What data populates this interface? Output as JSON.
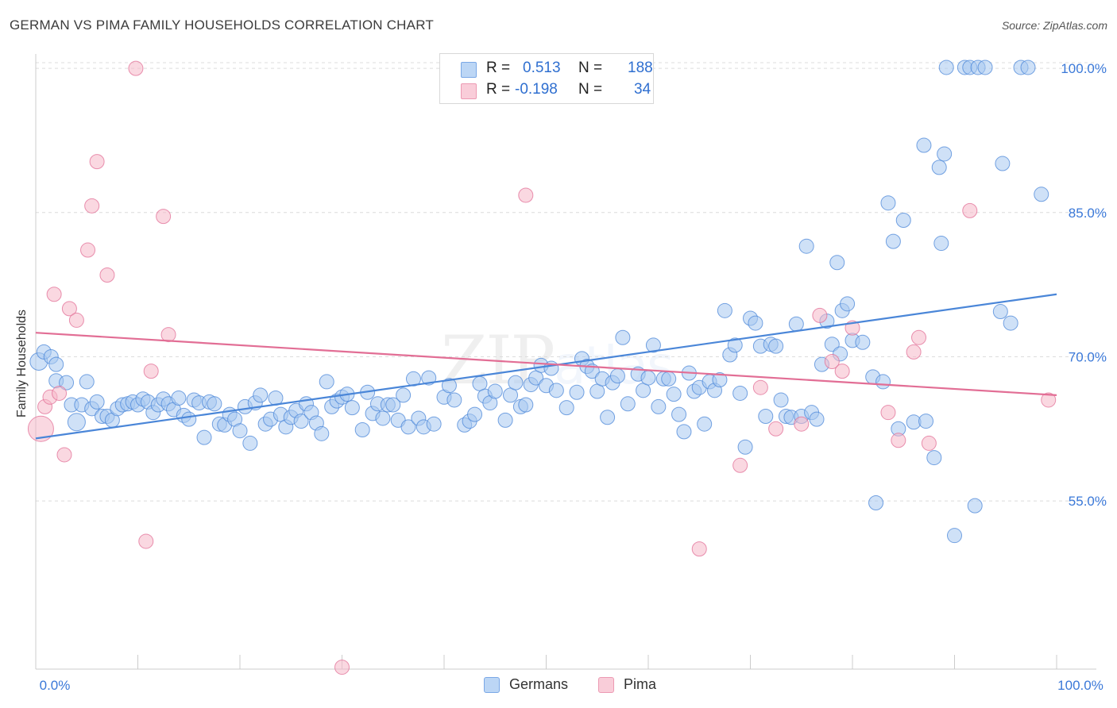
{
  "title": "GERMAN VS PIMA FAMILY HOUSEHOLDS CORRELATION CHART",
  "source": "Source: ZipAtlas.com",
  "watermark": {
    "zip": "ZIP",
    "atlas": "atlas"
  },
  "legend": {
    "rows": [
      {
        "r_label": "R =",
        "r_value": "0.513",
        "n_label": "N =",
        "n_value": "188",
        "color": "#a8c8f0"
      },
      {
        "r_label": "R =",
        "r_value": "-0.198",
        "n_label": "N =",
        "n_value": "34",
        "color": "#f5b8c8"
      }
    ]
  },
  "bottom_legend": [
    {
      "label": "Germans",
      "color": "#a8c8f0"
    },
    {
      "label": "Pima",
      "color": "#f5b8c8"
    }
  ],
  "chart_data": {
    "type": "scatter",
    "title": "GERMAN VS PIMA FAMILY HOUSEHOLDS CORRELATION CHART",
    "xlabel": "",
    "ylabel": "Family Households",
    "xlim": [
      0,
      100
    ],
    "ylim": [
      37.5,
      101.5
    ],
    "x_tick_labels": [
      "0.0%",
      "100.0%"
    ],
    "y_tick_labels": [
      "55.0%",
      "70.0%",
      "85.0%",
      "100.0%"
    ],
    "y_ticks": [
      55,
      70,
      85,
      100
    ],
    "grid": true,
    "legend_position": "top-center",
    "series": [
      {
        "name": "Germans",
        "color": "#4a86d8",
        "fill": "#a8c8f0",
        "trend": {
          "x": [
            0,
            100
          ],
          "y": [
            61.5,
            76.5
          ]
        },
        "points": [
          [
            0.3,
            69.5,
            2
          ],
          [
            0.8,
            70.5,
            1
          ],
          [
            1.5,
            70,
            1
          ],
          [
            2,
            69.2,
            1
          ],
          [
            2,
            67.5,
            1
          ],
          [
            3,
            67.3,
            1
          ],
          [
            3.5,
            65,
            1
          ],
          [
            4,
            63.2,
            2
          ],
          [
            4.5,
            65,
            1
          ],
          [
            5,
            67.4,
            1
          ],
          [
            5.5,
            64.6,
            1
          ],
          [
            6,
            65.3,
            1
          ],
          [
            6.5,
            63.8,
            1
          ],
          [
            7,
            63.8,
            1
          ],
          [
            7.5,
            63.4,
            1
          ],
          [
            8,
            64.6,
            1
          ],
          [
            8.5,
            65,
            1
          ],
          [
            9,
            65.1,
            1
          ],
          [
            9.5,
            65.3,
            1
          ],
          [
            10,
            65,
            1
          ],
          [
            10.5,
            65.6,
            1
          ],
          [
            11,
            65.3,
            1
          ],
          [
            11.5,
            64.2,
            1
          ],
          [
            12,
            65,
            1
          ],
          [
            12.5,
            65.6,
            1
          ],
          [
            13,
            65.1,
            1
          ],
          [
            13.5,
            64.5,
            1
          ],
          [
            14,
            65.7,
            1
          ],
          [
            14.5,
            63.9,
            1
          ],
          [
            15,
            63.5,
            1
          ],
          [
            15.5,
            65.5,
            1
          ],
          [
            16,
            65.2,
            1
          ],
          [
            16.5,
            61.6,
            1
          ],
          [
            17,
            65.3,
            1
          ],
          [
            17.5,
            65.1,
            1
          ],
          [
            18,
            63,
            1
          ],
          [
            18.5,
            62.9,
            1
          ],
          [
            19,
            64,
            1
          ],
          [
            19.5,
            63.5,
            1
          ],
          [
            20,
            62.3,
            1
          ],
          [
            20.5,
            64.8,
            1
          ],
          [
            21,
            61,
            1
          ],
          [
            21.5,
            65.2,
            1
          ],
          [
            22,
            66,
            1
          ],
          [
            22.5,
            63,
            1
          ],
          [
            23,
            63.5,
            1
          ],
          [
            23.5,
            65.7,
            1
          ],
          [
            24,
            64,
            1
          ],
          [
            24.5,
            62.7,
            1
          ],
          [
            25,
            63.7,
            1
          ],
          [
            25.5,
            64.4,
            1
          ],
          [
            26,
            63.3,
            1
          ],
          [
            26.5,
            65.1,
            1
          ],
          [
            27,
            64.2,
            1
          ],
          [
            27.5,
            63.1,
            1
          ],
          [
            28,
            62,
            1
          ],
          [
            28.5,
            67.4,
            1
          ],
          [
            29,
            64.8,
            1
          ],
          [
            29.5,
            65.4,
            1
          ],
          [
            30,
            65.8,
            1
          ],
          [
            30.5,
            66.1,
            1
          ],
          [
            31,
            64.7,
            1
          ],
          [
            32,
            62.4,
            1
          ],
          [
            32.5,
            66.3,
            1
          ],
          [
            33,
            64.1,
            1
          ],
          [
            33.5,
            65.1,
            1
          ],
          [
            34,
            63.6,
            1
          ],
          [
            34.5,
            65,
            1
          ],
          [
            35,
            65,
            1
          ],
          [
            35.5,
            63.4,
            1
          ],
          [
            36,
            66,
            1
          ],
          [
            36.5,
            62.7,
            1
          ],
          [
            37,
            67.7,
            1
          ],
          [
            37.5,
            63.6,
            1
          ],
          [
            38,
            62.7,
            1
          ],
          [
            38.5,
            67.8,
            1
          ],
          [
            39,
            63,
            1
          ],
          [
            40,
            65.8,
            1
          ],
          [
            40.5,
            67,
            1
          ],
          [
            41,
            65.5,
            1
          ],
          [
            42,
            62.9,
            1
          ],
          [
            42.5,
            63.3,
            1
          ],
          [
            43,
            64,
            1
          ],
          [
            43.5,
            67.2,
            1
          ],
          [
            44,
            65.9,
            1
          ],
          [
            44.5,
            65.2,
            1
          ],
          [
            45,
            66.4,
            1
          ],
          [
            46,
            63.4,
            1
          ],
          [
            46.5,
            66,
            1
          ],
          [
            47,
            67.3,
            1
          ],
          [
            47.5,
            64.8,
            1
          ],
          [
            48,
            65,
            1
          ],
          [
            48.5,
            67.1,
            1
          ],
          [
            49,
            67.8,
            1
          ],
          [
            49.5,
            69.1,
            1
          ],
          [
            50,
            67,
            1
          ],
          [
            50.5,
            68.8,
            1
          ],
          [
            51,
            66.5,
            1
          ],
          [
            52,
            64.7,
            1
          ],
          [
            53,
            66.3,
            1
          ],
          [
            53.5,
            69.8,
            1
          ],
          [
            54,
            69,
            1
          ],
          [
            54.5,
            68.5,
            1
          ],
          [
            55,
            66.4,
            1
          ],
          [
            55.5,
            67.7,
            1
          ],
          [
            56,
            63.7,
            1
          ],
          [
            56.5,
            67.3,
            1
          ],
          [
            57,
            68,
            1
          ],
          [
            57.5,
            72,
            1
          ],
          [
            58,
            65.1,
            1
          ],
          [
            59,
            68.2,
            1
          ],
          [
            59.5,
            66.5,
            1
          ],
          [
            60,
            67.8,
            1
          ],
          [
            60.5,
            71.2,
            1
          ],
          [
            61,
            64.8,
            1
          ],
          [
            61.5,
            67.7,
            1
          ],
          [
            62,
            67.7,
            1
          ],
          [
            62.5,
            66.1,
            1
          ],
          [
            63,
            64,
            1
          ],
          [
            63.5,
            62.2,
            1
          ],
          [
            64,
            68.3,
            1
          ],
          [
            64.5,
            66.4,
            1
          ],
          [
            65,
            66.8,
            1
          ],
          [
            65.5,
            63,
            1
          ],
          [
            66,
            67.4,
            1
          ],
          [
            66.5,
            66.5,
            1
          ],
          [
            67,
            67.6,
            1
          ],
          [
            67.5,
            74.8,
            1
          ],
          [
            68,
            70.2,
            1
          ],
          [
            68.5,
            71.2,
            1
          ],
          [
            69,
            66.2,
            1
          ],
          [
            69.5,
            60.6,
            1
          ],
          [
            70,
            74,
            1
          ],
          [
            70.5,
            73.5,
            1
          ],
          [
            71,
            71.1,
            1
          ],
          [
            71.5,
            63.8,
            1
          ],
          [
            72,
            71.3,
            1
          ],
          [
            72.5,
            71.1,
            1
          ],
          [
            73,
            65.5,
            1
          ],
          [
            73.5,
            63.8,
            1
          ],
          [
            74,
            63.7,
            1
          ],
          [
            74.5,
            73.4,
            1
          ],
          [
            75,
            63.8,
            1
          ],
          [
            75.5,
            81.5,
            1
          ],
          [
            76,
            64.2,
            1
          ],
          [
            76.5,
            63.5,
            1
          ],
          [
            77,
            69.2,
            1
          ],
          [
            77.5,
            73.7,
            1
          ],
          [
            78,
            71.3,
            1
          ],
          [
            78.5,
            79.8,
            1
          ],
          [
            78.8,
            70.3,
            1
          ],
          [
            79,
            74.8,
            1
          ],
          [
            79.5,
            75.5,
            1
          ],
          [
            80,
            71.7,
            1
          ],
          [
            81,
            71.5,
            1
          ],
          [
            82,
            67.9,
            1
          ],
          [
            82.3,
            54.8,
            1
          ],
          [
            83,
            67.4,
            1
          ],
          [
            83.5,
            86,
            1
          ],
          [
            84,
            82,
            1
          ],
          [
            84.5,
            62.5,
            1
          ],
          [
            85,
            84.2,
            1
          ],
          [
            86,
            63.2,
            1
          ],
          [
            87,
            92,
            1
          ],
          [
            87.2,
            63.3,
            1
          ],
          [
            88,
            59.5,
            1
          ],
          [
            88.5,
            89.7,
            1
          ],
          [
            88.7,
            81.8,
            1
          ],
          [
            89,
            91.1,
            1
          ],
          [
            89.2,
            100.1,
            1
          ],
          [
            90,
            51.4,
            1
          ],
          [
            91,
            100.1,
            1
          ],
          [
            91.5,
            100.1,
            1
          ],
          [
            92,
            54.5,
            1
          ],
          [
            92.3,
            100.1,
            1
          ],
          [
            93,
            100.1,
            1
          ],
          [
            94.5,
            74.7,
            1
          ],
          [
            94.7,
            90.1,
            1
          ],
          [
            95.5,
            73.5,
            1
          ],
          [
            96.5,
            100.1,
            1
          ],
          [
            97.2,
            100.1,
            1
          ],
          [
            98.5,
            86.9,
            1
          ]
        ]
      },
      {
        "name": "Pima",
        "color": "#e26e95",
        "fill": "#f5b8c8",
        "trend": {
          "x": [
            0,
            100
          ],
          "y": [
            72.5,
            66
          ]
        },
        "points": [
          [
            0.5,
            62.5,
            3
          ],
          [
            0.9,
            64.8,
            1
          ],
          [
            1.4,
            65.8,
            1
          ],
          [
            1.8,
            76.5,
            1
          ],
          [
            2.3,
            66.2,
            1
          ],
          [
            2.8,
            59.8,
            1
          ],
          [
            3.3,
            75,
            1
          ],
          [
            4,
            73.8,
            1
          ],
          [
            5.1,
            81.1,
            1
          ],
          [
            5.5,
            85.7,
            1
          ],
          [
            6,
            90.3,
            1
          ],
          [
            7,
            78.5,
            1
          ],
          [
            9.8,
            100,
            1
          ],
          [
            10.8,
            50.8,
            1
          ],
          [
            11.3,
            68.5,
            1
          ],
          [
            12.5,
            84.6,
            1
          ],
          [
            13,
            72.3,
            1
          ],
          [
            30,
            37.7,
            1
          ],
          [
            48,
            86.8,
            1
          ],
          [
            65,
            50,
            1
          ],
          [
            69,
            58.7,
            1
          ],
          [
            71,
            66.8,
            1
          ],
          [
            72.5,
            62.5,
            1
          ],
          [
            75,
            63,
            1
          ],
          [
            76.8,
            74.3,
            1
          ],
          [
            78,
            69.5,
            1
          ],
          [
            79,
            68.5,
            1
          ],
          [
            80,
            73,
            1
          ],
          [
            83.5,
            64.2,
            1
          ],
          [
            84.5,
            61.3,
            1
          ],
          [
            86,
            70.5,
            1
          ],
          [
            86.5,
            72,
            1
          ],
          [
            87.5,
            61,
            1
          ],
          [
            91.5,
            85.2,
            1
          ],
          [
            99.2,
            65.5,
            1
          ]
        ]
      }
    ]
  }
}
